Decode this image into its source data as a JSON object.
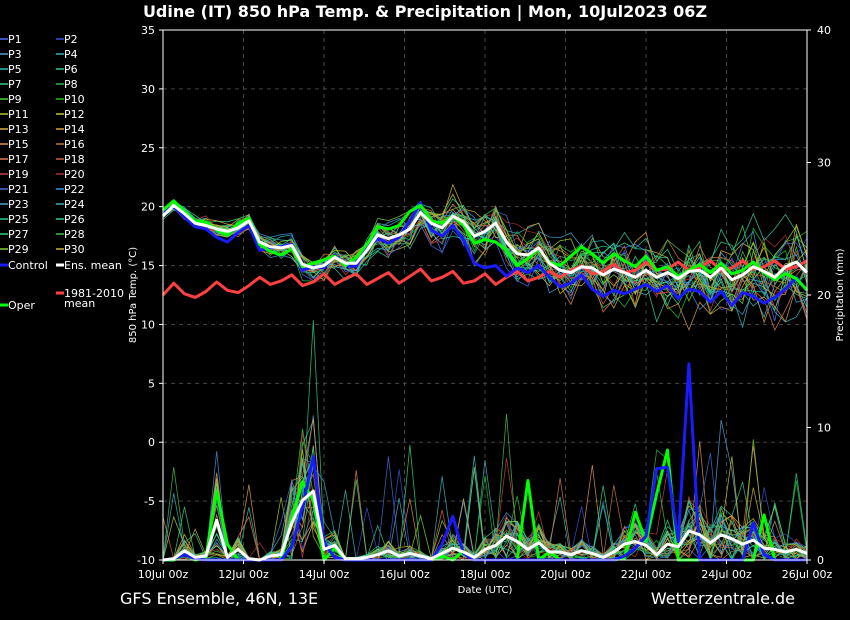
{
  "header": {
    "title": "Udine  (IT)  850 hPa Temp. & Precipitation | Mon, 10Jul2023 06Z"
  },
  "footer": {
    "left": "GFS Ensemble, 46N, 13E",
    "right": "Wetterzentrale.de"
  },
  "chart_data": {
    "type": "line",
    "title": "Udine  (IT)  850 hPa Temp. & Precipitation | Mon, 10Jul2023 06Z",
    "xlabel": "Date (UTC)",
    "ylabel": "850 hPa Temp. (°C)",
    "y2label": "Precipitation (mm)",
    "ylim": [
      -10,
      35
    ],
    "y2lim": [
      0,
      40
    ],
    "yticks": [
      "35",
      "30",
      "25",
      "20",
      "15",
      "10",
      "5",
      "0",
      "-5",
      "-10"
    ],
    "y2ticks": [
      "40",
      "30",
      "20",
      "10",
      "0"
    ],
    "xlim_hours": [
      0,
      384
    ],
    "xticks": [
      {
        "h": 0,
        "label": "10Jul 00z"
      },
      {
        "h": 48,
        "label": "12Jul 00z"
      },
      {
        "h": 96,
        "label": "14Jul 00z"
      },
      {
        "h": 144,
        "label": "16Jul 00z"
      },
      {
        "h": 192,
        "label": "18Jul 00z"
      },
      {
        "h": 240,
        "label": "20Jul 00z"
      },
      {
        "h": 288,
        "label": "22Jul 00z"
      },
      {
        "h": 336,
        "label": "24Jul 00z"
      },
      {
        "h": 384,
        "label": "26Jul 00z"
      }
    ],
    "grid": true,
    "legend_position": "left",
    "legend": [
      {
        "name": "P1",
        "color": "#4a6cff"
      },
      {
        "name": "P2",
        "color": "#3a4ee0"
      },
      {
        "name": "P3",
        "color": "#4fa0e0"
      },
      {
        "name": "P4",
        "color": "#3ab0c0"
      },
      {
        "name": "P5",
        "color": "#30c0b0"
      },
      {
        "name": "P6",
        "color": "#28c898"
      },
      {
        "name": "P7",
        "color": "#30d080"
      },
      {
        "name": "P8",
        "color": "#2ab84a"
      },
      {
        "name": "P9",
        "color": "#48d040"
      },
      {
        "name": "P10",
        "color": "#20c020"
      },
      {
        "name": "P11",
        "color": "#a8c830"
      },
      {
        "name": "P12",
        "color": "#c8c040"
      },
      {
        "name": "P13",
        "color": "#d8b040"
      },
      {
        "name": "P14",
        "color": "#e09a40"
      },
      {
        "name": "P15",
        "color": "#d89050"
      },
      {
        "name": "P16",
        "color": "#c07838"
      },
      {
        "name": "P17",
        "color": "#e07850"
      },
      {
        "name": "P18",
        "color": "#d06040"
      },
      {
        "name": "P19",
        "color": "#c84040"
      },
      {
        "name": "P20",
        "color": "#a83030"
      },
      {
        "name": "P21",
        "color": "#4070d8"
      },
      {
        "name": "P22",
        "color": "#3890e0"
      },
      {
        "name": "P23",
        "color": "#40a8d0"
      },
      {
        "name": "P24",
        "color": "#38b0b8"
      },
      {
        "name": "P25",
        "color": "#30c8a0"
      },
      {
        "name": "P26",
        "color": "#28d090"
      },
      {
        "name": "P27",
        "color": "#30d878"
      },
      {
        "name": "P28",
        "color": "#40c050"
      },
      {
        "name": "P29",
        "color": "#80d030"
      },
      {
        "name": "P30",
        "color": "#c8b030"
      },
      {
        "name": "Control",
        "color": "#1a1aff"
      },
      {
        "name": "Ens. mean",
        "color": "#ffffff"
      },
      {
        "name": "1981-2010 mean",
        "color": "#ff4040"
      },
      {
        "name": "Oper",
        "color": "#00ff00"
      }
    ],
    "series": [
      {
        "name": "Ens. mean",
        "axis": "temp",
        "color": "#ffffff",
        "values": [
          19.2,
          20.1,
          19.4,
          18.6,
          18.4,
          18.1,
          17.9,
          18.2,
          18.8,
          17.0,
          16.6,
          16.5,
          16.7,
          15.1,
          14.8,
          15.0,
          15.7,
          15.2,
          15.2,
          16.3,
          17.6,
          17.3,
          17.6,
          18.1,
          19.5,
          18.6,
          18.2,
          19.2,
          18.7,
          17.5,
          17.9,
          18.6,
          17.0,
          16.0,
          15.9,
          16.5,
          15.2,
          14.6,
          14.4,
          14.9,
          14.8,
          14.2,
          14.7,
          14.4,
          14.0,
          14.6,
          14.0,
          14.4,
          13.9,
          14.5,
          14.6,
          14.0,
          14.8,
          13.8,
          14.2,
          14.9,
          14.5,
          14.0,
          14.9,
          15.3,
          14.4
        ]
      },
      {
        "name": "Control",
        "axis": "temp",
        "color": "#1a1aff",
        "values": [
          19.6,
          20.0,
          19.1,
          18.3,
          18.1,
          17.4,
          17.0,
          17.8,
          18.4,
          16.3,
          16.5,
          16.6,
          16.8,
          14.6,
          14.9,
          14.8,
          15.9,
          15.0,
          14.9,
          16.5,
          17.3,
          16.9,
          17.4,
          18.8,
          20.3,
          18.0,
          17.5,
          18.4,
          17.2,
          15.2,
          14.8,
          15.0,
          14.1,
          14.8,
          14.4,
          15.0,
          14.0,
          13.2,
          13.5,
          14.2,
          13.0,
          12.4,
          12.9,
          12.6,
          13.0,
          13.4,
          12.8,
          13.3,
          12.2,
          13.0,
          12.8,
          11.9,
          12.8,
          11.6,
          12.7,
          12.4,
          11.8,
          12.3,
          13.0,
          14.0,
          12.9
        ]
      },
      {
        "name": "Oper",
        "axis": "temp",
        "color": "#00ff00",
        "values": [
          19.7,
          20.5,
          19.6,
          18.8,
          18.7,
          18.0,
          17.6,
          18.6,
          19.0,
          16.8,
          16.2,
          15.9,
          16.4,
          14.9,
          15.2,
          15.5,
          15.8,
          15.0,
          15.7,
          16.8,
          18.3,
          18.1,
          18.4,
          19.6,
          20.1,
          18.8,
          18.6,
          19.2,
          18.4,
          16.9,
          17.2,
          17.0,
          16.3,
          15.0,
          15.6,
          16.4,
          15.3,
          15.0,
          15.8,
          16.6,
          16.0,
          15.2,
          16.0,
          15.4,
          14.9,
          15.8,
          14.6,
          14.9,
          14.1,
          14.6,
          15.1,
          14.4,
          15.2,
          14.3,
          14.6,
          15.3,
          14.4,
          13.8,
          14.3,
          13.9,
          12.9
        ]
      },
      {
        "name": "1981-2010 mean",
        "axis": "temp",
        "color": "#ff4040",
        "values": [
          12.5,
          13.5,
          12.6,
          12.3,
          12.8,
          13.6,
          12.9,
          12.7,
          13.3,
          14.0,
          13.4,
          13.7,
          14.2,
          13.3,
          13.6,
          14.3,
          13.4,
          13.9,
          14.3,
          13.4,
          13.9,
          14.4,
          13.5,
          14.1,
          14.7,
          13.7,
          14.0,
          14.5,
          13.5,
          13.7,
          14.3,
          13.4,
          14.0,
          14.5,
          13.7,
          14.0,
          14.5,
          14.0,
          14.6,
          15.0,
          14.3,
          14.5,
          15.1,
          14.4,
          14.6,
          15.3,
          14.6,
          14.7,
          15.3,
          14.6,
          14.8,
          15.4,
          14.6,
          14.8,
          15.4,
          14.7,
          14.9,
          15.4,
          14.7,
          14.9,
          15.4
        ]
      },
      {
        "name": "Ens. mean precip",
        "axis": "precip",
        "color": "#ffffff",
        "values": [
          0,
          0.1,
          0.7,
          0.2,
          0.3,
          3.0,
          0.2,
          0.8,
          0.1,
          0.0,
          0.3,
          0.4,
          2.8,
          4.5,
          5.2,
          0.8,
          1.1,
          0.1,
          0.1,
          0.2,
          0.4,
          0.7,
          0.3,
          0.5,
          0.3,
          0.1,
          0.5,
          0.9,
          0.6,
          0.2,
          0.8,
          1.1,
          1.8,
          1.4,
          0.8,
          1.3,
          0.6,
          0.6,
          0.4,
          0.7,
          0.5,
          0.2,
          0.6,
          1.2,
          1.4,
          1.1,
          0.4,
          1.2,
          1.0,
          2.2,
          1.9,
          1.3,
          1.9,
          1.6,
          1.2,
          1.5,
          0.9,
          0.8,
          0.6,
          0.8,
          0.5
        ]
      },
      {
        "name": "Control precip",
        "axis": "precip",
        "color": "#1a1aff",
        "values": [
          0,
          0.1,
          0.4,
          0.1,
          0,
          0,
          0,
          0,
          0,
          0,
          0,
          0,
          1.0,
          4.0,
          7.8,
          1.3,
          0.2,
          0,
          0,
          0,
          0,
          0,
          0,
          0,
          0,
          0,
          1.2,
          3.3,
          0.5,
          0,
          0,
          0,
          0,
          0,
          0,
          0,
          0,
          0,
          0,
          0,
          0,
          0,
          0,
          0.3,
          0.9,
          1.8,
          6.9,
          7.0,
          1.4,
          14.8,
          0,
          0,
          0,
          0,
          0,
          2.8,
          0.4,
          0,
          0,
          0,
          0
        ]
      },
      {
        "name": "Oper precip",
        "axis": "precip",
        "color": "#00ff00",
        "values": [
          0,
          0,
          0.4,
          0,
          0.2,
          5.2,
          1.2,
          0,
          0,
          0,
          0,
          0,
          3.1,
          5.9,
          4.5,
          0,
          0.9,
          0,
          0,
          0,
          0,
          0,
          0,
          0,
          0,
          0,
          0.3,
          0,
          0.7,
          0,
          0,
          0,
          0,
          0,
          6.0,
          0,
          0.6,
          0,
          0,
          0,
          0,
          0,
          0,
          0.2,
          3.6,
          1.4,
          5.0,
          8.3,
          0,
          0,
          0,
          0,
          0,
          0,
          0,
          0,
          3.4,
          0,
          0,
          0,
          0
        ]
      }
    ]
  }
}
